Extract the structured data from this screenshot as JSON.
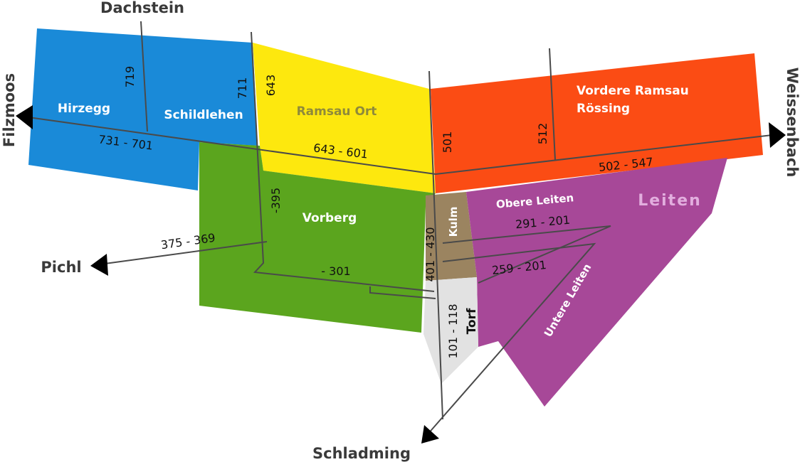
{
  "directions": [
    "Dachstein",
    "Filzmoos",
    "Weissenbach",
    "Pichl",
    "Schladming"
  ],
  "districts": [
    {
      "label": "Hirzegg"
    },
    {
      "label": "Schildlehen"
    },
    {
      "label": "Ramsau Ort"
    },
    {
      "lines": [
        "Vordere Ramsau",
        "Rössing"
      ]
    },
    {
      "label": "Vorberg"
    },
    {
      "label": "Kulm"
    },
    {
      "label": "Obere Leiten"
    },
    {
      "label": "Leiten"
    },
    {
      "label": "Untere Leiten"
    },
    {
      "label": "Torf"
    }
  ],
  "numbers": [
    "719",
    "711",
    "643",
    "731 - 701",
    "643 - 601",
    "501",
    "512",
    "502 - 547",
    "-395",
    "375 - 369",
    "- 301",
    "401 - 430",
    "291 - 201",
    "259 - 201",
    "101 - 118"
  ]
}
